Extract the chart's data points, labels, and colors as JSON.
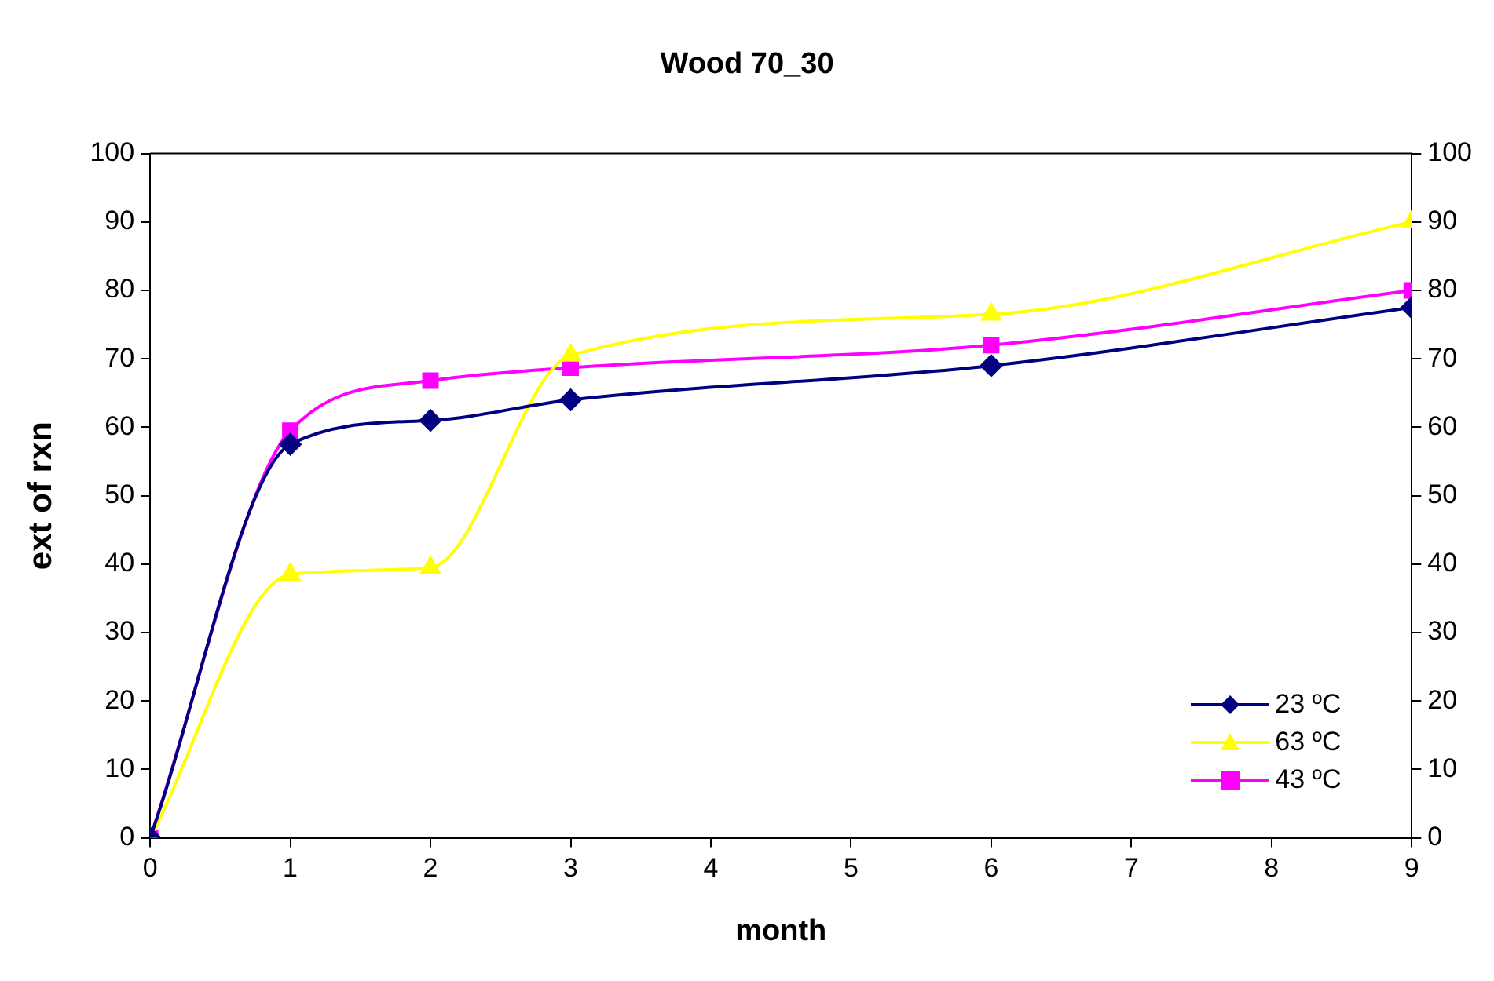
{
  "chart_data": {
    "type": "line",
    "title": "Wood 70_30",
    "xlabel": "month",
    "ylabel": "ext of rxn",
    "x": [
      0,
      1,
      2,
      3,
      6,
      9
    ],
    "xlim": [
      0,
      9
    ],
    "xticks": [
      0,
      1,
      2,
      3,
      4,
      5,
      6,
      7,
      8,
      9
    ],
    "ylim": [
      0,
      100
    ],
    "yticks": [
      0,
      10,
      20,
      30,
      40,
      50,
      60,
      70,
      80,
      90,
      100
    ],
    "y2lim": [
      0,
      100
    ],
    "y2ticks": [
      0,
      10,
      20,
      30,
      40,
      50,
      60,
      70,
      80,
      90,
      100
    ],
    "grid": false,
    "legend": "bottom right",
    "line_style": "solid",
    "series": [
      {
        "name": "23 ºC",
        "color": "#000080",
        "marker": "diamond",
        "values": [
          0,
          57.5,
          61,
          64,
          69,
          77.5
        ]
      },
      {
        "name": "63 ºC",
        "color": "#ffff00",
        "marker": "triangle",
        "values": [
          0,
          38.5,
          39.5,
          70.5,
          76.5,
          90
        ]
      },
      {
        "name": "43 ºC",
        "color": "#ff00ff",
        "marker": "square",
        "values": [
          0,
          59.5,
          66.8,
          68.7,
          72,
          80
        ]
      }
    ]
  }
}
